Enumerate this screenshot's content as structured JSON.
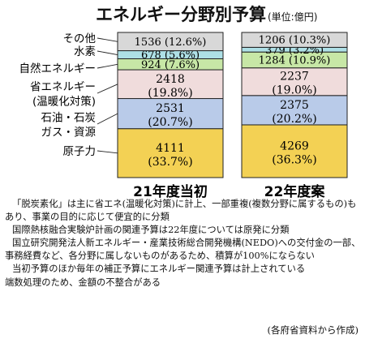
{
  "title": "エネルギー分野別予算",
  "unit": "(単位:億円)",
  "chart_data": {
    "type": "bar",
    "stacked": true,
    "categories": [
      "21年度当初",
      "22年度案"
    ],
    "series": [
      {
        "name": "原子力",
        "values": [
          4111,
          4269
        ],
        "labels": [
          "4111",
          "4269"
        ],
        "percent_labels": [
          "(33.7%)",
          "(36.3%)"
        ],
        "color": "#f3d154"
      },
      {
        "name": "石油・石炭ガス・資源",
        "name_lines": [
          "石油・石炭",
          "ガス・資源"
        ],
        "values": [
          2531,
          2375
        ],
        "labels": [
          "2531",
          "2375"
        ],
        "percent_labels": [
          "(20.7%)",
          "(20.2%)"
        ],
        "color": "#b9cbe9"
      },
      {
        "name": "省エネルギー(温暖化対策)",
        "name_lines": [
          "省エネルギー",
          "(温暖化対策)"
        ],
        "values": [
          2418,
          2237
        ],
        "labels": [
          "2418",
          "2237"
        ],
        "percent_labels": [
          "(19.8%)",
          "(19.0%)"
        ],
        "color": "#f0dcdc"
      },
      {
        "name": "自然エネルギー",
        "values": [
          924,
          1284
        ],
        "labels": [
          "924"
        ],
        "percent_labels": [
          "(7.6%)"
        ],
        "inline_labels": [
          "924 (7.6%)",
          "1284 (10.9%)"
        ],
        "color": "#c7e7a6"
      },
      {
        "name": "水素",
        "values": [
          678,
          379
        ],
        "inline_labels": [
          "678 (5.6%)",
          "379 (3.2%)"
        ],
        "color": "#aee0e6"
      },
      {
        "name": "その他",
        "values": [
          1536,
          1206
        ],
        "inline_labels": [
          "1536 (12.6%)",
          "1206 (10.3%)"
        ],
        "color": "#d8d8d8"
      }
    ]
  },
  "notes": [
    "「脱炭素化」は主に省エネ(温暖化対策)に計上、一部重複(複数分野に属するもの)もあり、事業の目的に応じて便宜的に分類",
    "国際熱核融合実験炉計画の関連予算は22年度については原発に分類",
    "国立研究開発法人新エネルギー・産業技術総合開発機構(NEDO)への交付金の一部、事務経費など、各分野に属しないものがあるため、積算が100%にならない",
    "当初予算のほか毎年の補正予算にエネルギー関連予算は計上されている",
    "端数処理のため、金額の不整合がある"
  ],
  "source": "(各府省資料から作成)"
}
